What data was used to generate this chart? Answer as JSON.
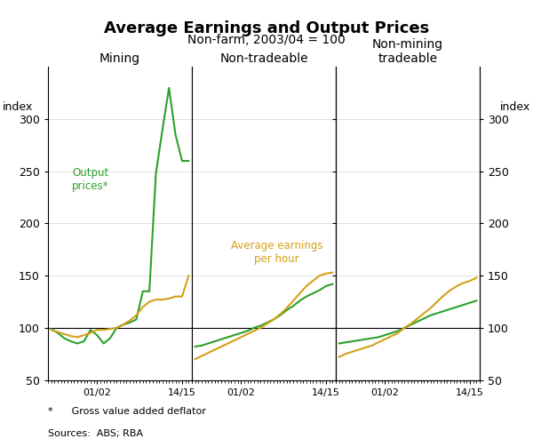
{
  "title": "Average Earnings and Output Prices",
  "subtitle": "Non-farm, 2003/04 = 100",
  "ylabel_left": "index",
  "ylabel_right": "index",
  "ylim": [
    50,
    350
  ],
  "yticks": [
    50,
    100,
    150,
    200,
    250,
    300
  ],
  "footnote1": "*      Gross value added deflator",
  "footnote2": "Sources:  ABS; RBA",
  "panels": [
    "Mining",
    "Non-tradeable",
    "Non-mining\ntradeable"
  ],
  "green_color": "#2ca02c",
  "gold_color": "#d4a017",
  "output_label": "Output\nprices*",
  "earnings_label": "Average earnings\nper hour",
  "mining_x": [
    1994,
    1995,
    1996,
    1997,
    1998,
    1999,
    2000,
    2001,
    2002,
    2003,
    2004,
    2005,
    2006,
    2007,
    2008,
    2009,
    2010,
    2011,
    2012,
    2013,
    2014,
    2015
  ],
  "mining_output": [
    99,
    95,
    90,
    87,
    85,
    87,
    98,
    93,
    85,
    90,
    100,
    103,
    105,
    108,
    135,
    135,
    248,
    290,
    330,
    285,
    260,
    260
  ],
  "mining_earnings": [
    98,
    96,
    94,
    92,
    91,
    93,
    95,
    98,
    98,
    99,
    100,
    103,
    107,
    112,
    120,
    125,
    127,
    127,
    128,
    130,
    130,
    150
  ],
  "nontrade_x": [
    1994,
    1995,
    1996,
    1997,
    1998,
    1999,
    2000,
    2001,
    2002,
    2003,
    2004,
    2005,
    2006,
    2007,
    2008,
    2009,
    2010,
    2011,
    2012,
    2013,
    2014,
    2015
  ],
  "nontrade_output": [
    82,
    83,
    85,
    87,
    89,
    91,
    93,
    95,
    97,
    100,
    102,
    105,
    108,
    112,
    117,
    121,
    126,
    130,
    133,
    136,
    140,
    142
  ],
  "nontrade_earnings": [
    70,
    73,
    76,
    79,
    82,
    85,
    88,
    91,
    94,
    97,
    100,
    104,
    108,
    113,
    119,
    126,
    133,
    140,
    145,
    150,
    152,
    153
  ],
  "nonmining_x": [
    1994,
    1995,
    1996,
    1997,
    1998,
    1999,
    2000,
    2001,
    2002,
    2003,
    2004,
    2005,
    2006,
    2007,
    2008,
    2009,
    2010,
    2011,
    2012,
    2013,
    2014,
    2015
  ],
  "nonmining_output": [
    85,
    86,
    87,
    88,
    89,
    90,
    91,
    93,
    95,
    97,
    100,
    103,
    106,
    109,
    112,
    114,
    116,
    118,
    120,
    122,
    124,
    126
  ],
  "nonmining_earnings": [
    72,
    75,
    77,
    79,
    81,
    83,
    86,
    89,
    92,
    95,
    100,
    104,
    109,
    114,
    119,
    125,
    131,
    136,
    140,
    143,
    145,
    148
  ],
  "xtick_positions": [
    1994,
    2001,
    2014.5
  ],
  "xtick_labels": [
    "01/02",
    "01/02",
    "14/15"
  ],
  "panel_xtick_labels": [
    [
      "01/02",
      "14/15"
    ],
    [
      "01/02",
      "14/15"
    ],
    [
      "01/02",
      "14/15"
    ]
  ]
}
